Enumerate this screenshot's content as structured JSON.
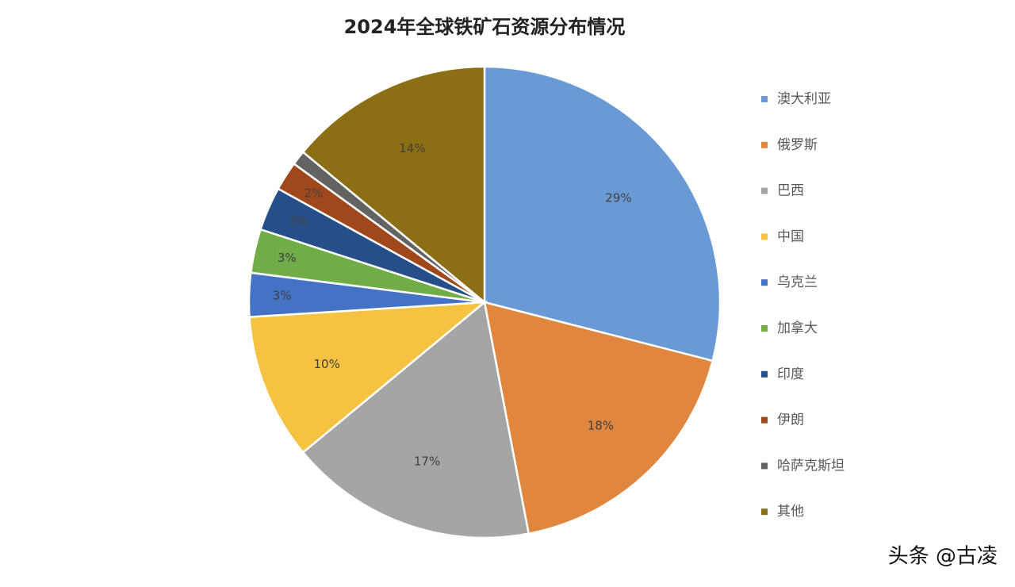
{
  "chart_data": {
    "type": "pie",
    "title": "2024年全球铁矿石资源分布情况",
    "categories": [
      "澳大利亚",
      "俄罗斯",
      "巴西",
      "中国",
      "乌克兰",
      "加拿大",
      "印度",
      "伊朗",
      "哈萨克斯坦",
      "其他"
    ],
    "values": [
      29,
      18,
      17,
      10,
      3,
      3,
      3,
      2,
      1,
      14
    ],
    "value_labels": [
      "29%",
      "18%",
      "17%",
      "10%",
      "3%",
      "3%",
      "3%",
      "2%",
      null,
      "14%"
    ],
    "colors": [
      "#6a9ad6",
      "#e0863e",
      "#a5a5a5",
      "#f5c242",
      "#4472c4",
      "#70ad47",
      "#264f8a",
      "#a0481c",
      "#636363",
      "#8c6e14"
    ],
    "legend": "right"
  },
  "watermark": "头条 @古凌"
}
